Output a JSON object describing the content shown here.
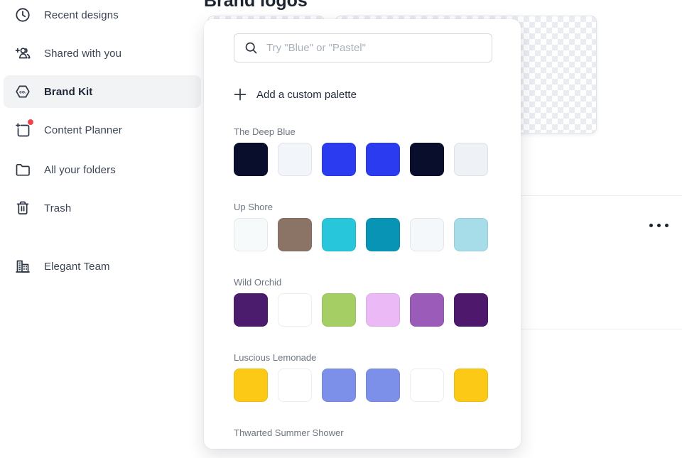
{
  "page_title": "Brand logos",
  "sidebar": {
    "items": [
      {
        "label": "Recent designs",
        "icon": "clock"
      },
      {
        "label": "Shared with you",
        "icon": "people-plus"
      },
      {
        "label": "Brand Kit",
        "icon": "brand-kit-hexagon",
        "active": true
      },
      {
        "label": "Content Planner",
        "icon": "calendar-plus",
        "notification_dot": true
      },
      {
        "label": "All your folders",
        "icon": "folder"
      },
      {
        "label": "Trash",
        "icon": "trash"
      }
    ],
    "team": {
      "label": "Elegant Team",
      "icon": "buildings"
    }
  },
  "palette_popup": {
    "search": {
      "placeholder": "Try \"Blue\" or \"Pastel\""
    },
    "add_custom_label": "Add a custom palette",
    "palettes": [
      {
        "name": "The Deep Blue",
        "colors": [
          "#0A0E2D",
          "#F2F5F9",
          "#2B3CF0",
          "#2B3CF0",
          "#0A0E2D",
          "#EEF2F7"
        ]
      },
      {
        "name": "Up Shore",
        "colors": [
          "#F7FAFB",
          "#8B7366",
          "#27C6DA",
          "#0894B5",
          "#F5F8FA",
          "#A6DDE9"
        ]
      },
      {
        "name": "Wild Orchid",
        "colors": [
          "#4B1C6D",
          "#FFFFFF",
          "#A5CF64",
          "#EAB9F6",
          "#9B5CB9",
          "#4E196D"
        ]
      },
      {
        "name": "Luscious Lemonade",
        "colors": [
          "#FCC917",
          "#FFFFFF",
          "#7D90E9",
          "#7D90E9",
          "#FFFFFF",
          "#FCC917"
        ]
      },
      {
        "name": "Thwarted Summer Shower",
        "colors": []
      }
    ]
  },
  "colors": {
    "accent_red_dot": "#F2434D",
    "sidebar_active_bg": "#F2F3F5",
    "divider": "#EDF0F3"
  }
}
